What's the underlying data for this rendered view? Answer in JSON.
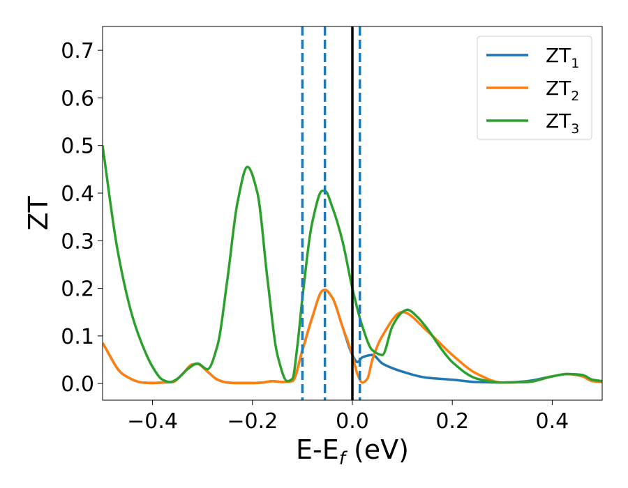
{
  "chart_data": {
    "type": "line",
    "xlabel": "E-E_f (eV)",
    "ylabel": "ZT",
    "xlim": [
      -0.5,
      0.5
    ],
    "ylim": [
      -0.035,
      0.75
    ],
    "xticks": [
      -0.4,
      -0.2,
      0.0,
      0.2,
      0.4
    ],
    "xtick_labels": [
      "−0.4",
      "−0.2",
      "0.0",
      "0.2",
      "0.4"
    ],
    "yticks": [
      0.0,
      0.1,
      0.2,
      0.3,
      0.4,
      0.5,
      0.6,
      0.7
    ],
    "ytick_labels": [
      "0.0",
      "0.1",
      "0.2",
      "0.3",
      "0.4",
      "0.5",
      "0.6",
      "0.7"
    ],
    "grid": false,
    "legend_position": "top-right",
    "vertical_lines": [
      {
        "x": -0.1,
        "style": "dashed",
        "color": "#1f77b4"
      },
      {
        "x": -0.055,
        "style": "dashed",
        "color": "#1f77b4"
      },
      {
        "x": 0.0,
        "style": "solid",
        "color": "#000000"
      },
      {
        "x": 0.015,
        "style": "dashed",
        "color": "#1f77b4"
      }
    ],
    "series": [
      {
        "name": "ZT₁",
        "base": "ZT",
        "sub": "1",
        "color": "#1f77b4",
        "x": [
          -0.5,
          -0.46,
          -0.42,
          -0.4,
          -0.38,
          -0.36,
          -0.34,
          -0.32,
          -0.31,
          -0.29,
          -0.27,
          -0.25,
          -0.23,
          -0.2,
          -0.18,
          -0.16,
          -0.14,
          -0.12,
          -0.1,
          -0.08,
          -0.06,
          -0.055,
          -0.04,
          -0.02,
          0.0,
          0.01,
          0.02,
          0.04,
          0.06,
          0.1,
          0.15,
          0.2,
          0.25,
          0.3,
          0.35,
          0.4,
          0.43,
          0.46,
          0.48,
          0.5
        ],
        "y": [
          0.085,
          0.02,
          0.002,
          0.001,
          0.002,
          0.003,
          0.02,
          0.04,
          0.041,
          0.025,
          0.008,
          0.002,
          0.001,
          0.001,
          0.002,
          0.005,
          0.003,
          0.005,
          0.07,
          0.14,
          0.195,
          0.197,
          0.18,
          0.12,
          0.06,
          0.045,
          0.055,
          0.06,
          0.042,
          0.025,
          0.012,
          0.008,
          0.003,
          0.002,
          0.005,
          0.015,
          0.02,
          0.018,
          0.008,
          0.004
        ]
      },
      {
        "name": "ZT₂",
        "base": "ZT",
        "sub": "2",
        "color": "#ff7f0e",
        "x": [
          -0.5,
          -0.46,
          -0.42,
          -0.4,
          -0.38,
          -0.36,
          -0.34,
          -0.32,
          -0.31,
          -0.29,
          -0.27,
          -0.25,
          -0.23,
          -0.2,
          -0.18,
          -0.16,
          -0.14,
          -0.12,
          -0.1,
          -0.08,
          -0.06,
          -0.055,
          -0.04,
          -0.02,
          0.0,
          0.01,
          0.02,
          0.03,
          0.04,
          0.06,
          0.1,
          0.15,
          0.2,
          0.25,
          0.3,
          0.35,
          0.4,
          0.43,
          0.46,
          0.48,
          0.5
        ],
        "y": [
          0.085,
          0.02,
          0.002,
          0.001,
          0.002,
          0.003,
          0.02,
          0.04,
          0.041,
          0.025,
          0.008,
          0.002,
          0.001,
          0.001,
          0.002,
          0.005,
          0.003,
          0.005,
          0.07,
          0.14,
          0.195,
          0.197,
          0.18,
          0.12,
          0.06,
          0.02,
          0.002,
          0.01,
          0.05,
          0.1,
          0.15,
          0.11,
          0.06,
          0.02,
          0.002,
          0.003,
          0.015,
          0.02,
          0.015,
          0.005,
          0.003
        ]
      },
      {
        "name": "ZT₃",
        "base": "ZT",
        "sub": "3",
        "color": "#2ca02c",
        "x": [
          -0.5,
          -0.47,
          -0.44,
          -0.42,
          -0.4,
          -0.38,
          -0.365,
          -0.35,
          -0.33,
          -0.31,
          -0.29,
          -0.27,
          -0.25,
          -0.23,
          -0.21,
          -0.19,
          -0.17,
          -0.15,
          -0.13,
          -0.12,
          -0.11,
          -0.1,
          -0.08,
          -0.06,
          -0.055,
          -0.04,
          -0.02,
          0.0,
          0.02,
          0.04,
          0.06,
          0.08,
          0.1,
          0.11,
          0.13,
          0.15,
          0.18,
          0.2,
          0.25,
          0.3,
          0.35,
          0.4,
          0.43,
          0.46,
          0.48,
          0.5
        ],
        "y": [
          0.5,
          0.28,
          0.14,
          0.08,
          0.035,
          0.008,
          0.003,
          0.01,
          0.03,
          0.042,
          0.03,
          0.08,
          0.22,
          0.38,
          0.455,
          0.4,
          0.22,
          0.06,
          0.005,
          0.01,
          0.08,
          0.18,
          0.34,
          0.405,
          0.405,
          0.37,
          0.3,
          0.2,
          0.12,
          0.07,
          0.06,
          0.12,
          0.15,
          0.155,
          0.14,
          0.115,
          0.07,
          0.045,
          0.01,
          0.002,
          0.003,
          0.015,
          0.02,
          0.018,
          0.008,
          0.005
        ]
      }
    ]
  }
}
